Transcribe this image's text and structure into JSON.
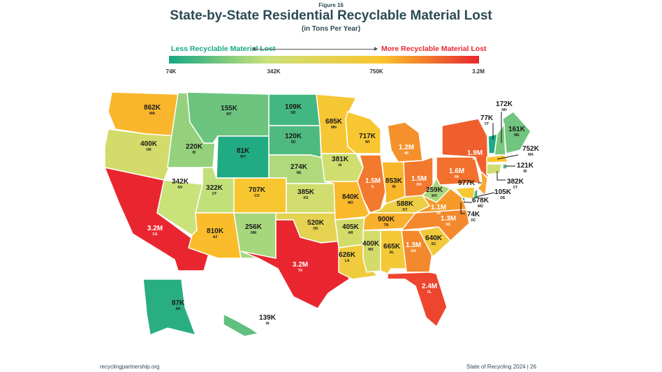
{
  "figure_label": "Figure 16",
  "title": "State-by-State Residential Recyclable Material Lost",
  "subtitle": "(in Tons Per Year)",
  "legend": {
    "less_label": "Less Recyclable Material Lost",
    "more_label": "More Recyclable Material Lost",
    "ticks": [
      "74K",
      "342K",
      "750K",
      "3.2M"
    ],
    "colors": {
      "low": "#16a883",
      "mid_low": "#c9e27a",
      "mid_high": "#fbc42b",
      "high": "#e9262f"
    }
  },
  "states": [
    {
      "abbr": "WA",
      "label": "862K",
      "value": 862000
    },
    {
      "abbr": "OR",
      "label": "400K",
      "value": 400000
    },
    {
      "abbr": "CA",
      "label": "3.2M",
      "value": 3200000
    },
    {
      "abbr": "ID",
      "label": "220K",
      "value": 220000
    },
    {
      "abbr": "NV",
      "label": "342K",
      "value": 342000
    },
    {
      "abbr": "MT",
      "label": "155K",
      "value": 155000
    },
    {
      "abbr": "WY",
      "label": "81K",
      "value": 81000
    },
    {
      "abbr": "UT",
      "label": "322K",
      "value": 322000
    },
    {
      "abbr": "AZ",
      "label": "810K",
      "value": 810000
    },
    {
      "abbr": "CO",
      "label": "707K",
      "value": 707000
    },
    {
      "abbr": "NM",
      "label": "256K",
      "value": 256000
    },
    {
      "abbr": "ND",
      "label": "109K",
      "value": 109000
    },
    {
      "abbr": "SD",
      "label": "120K",
      "value": 120000
    },
    {
      "abbr": "NE",
      "label": "274K",
      "value": 274000
    },
    {
      "abbr": "KS",
      "label": "385K",
      "value": 385000
    },
    {
      "abbr": "OK",
      "label": "520K",
      "value": 520000
    },
    {
      "abbr": "TX",
      "label": "3.2M",
      "value": 3200000
    },
    {
      "abbr": "MN",
      "label": "685K",
      "value": 685000
    },
    {
      "abbr": "IA",
      "label": "381K",
      "value": 381000
    },
    {
      "abbr": "MO",
      "label": "840K",
      "value": 840000
    },
    {
      "abbr": "AR",
      "label": "405K",
      "value": 405000
    },
    {
      "abbr": "LA",
      "label": "626K",
      "value": 626000
    },
    {
      "abbr": "WI",
      "label": "717K",
      "value": 717000
    },
    {
      "abbr": "IL",
      "label": "1.5M",
      "value": 1500000
    },
    {
      "abbr": "MI",
      "label": "1.2M",
      "value": 1200000
    },
    {
      "abbr": "IN",
      "label": "853K",
      "value": 853000
    },
    {
      "abbr": "OH",
      "label": "1.5M",
      "value": 1500000
    },
    {
      "abbr": "KY",
      "label": "588K",
      "value": 588000
    },
    {
      "abbr": "TN",
      "label": "900K",
      "value": 900000
    },
    {
      "abbr": "MS",
      "label": "400K",
      "value": 400000
    },
    {
      "abbr": "AL",
      "label": "665K",
      "value": 665000
    },
    {
      "abbr": "GA",
      "label": "1.3M",
      "value": 1300000
    },
    {
      "abbr": "FL",
      "label": "2.4M",
      "value": 2400000
    },
    {
      "abbr": "SC",
      "label": "640K",
      "value": 640000
    },
    {
      "abbr": "NC",
      "label": "1.3M",
      "value": 1300000
    },
    {
      "abbr": "VA",
      "label": "1.1M",
      "value": 1100000
    },
    {
      "abbr": "WV",
      "label": "259K",
      "value": 259000
    },
    {
      "abbr": "PA",
      "label": "1.6M",
      "value": 1600000
    },
    {
      "abbr": "NY",
      "label": "1.9M",
      "value": 1900000
    },
    {
      "abbr": "ME",
      "label": "161K",
      "value": 161000
    },
    {
      "abbr": "VT",
      "label": "77K",
      "value": 77000
    },
    {
      "abbr": "NH",
      "label": "172K",
      "value": 172000
    },
    {
      "abbr": "MA",
      "label": "752K",
      "value": 752000
    },
    {
      "abbr": "RI",
      "label": "121K",
      "value": 121000
    },
    {
      "abbr": "CT",
      "label": "382K",
      "value": 382000
    },
    {
      "abbr": "NJ",
      "label": "977K",
      "value": 977000
    },
    {
      "abbr": "DE",
      "label": "105K",
      "value": 105000
    },
    {
      "abbr": "MD",
      "label": "678K",
      "value": 678000
    },
    {
      "abbr": "DC",
      "label": "74K",
      "value": 74000
    },
    {
      "abbr": "AK",
      "label": "87K",
      "value": 87000
    },
    {
      "abbr": "HI",
      "label": "139K",
      "value": 139000
    }
  ],
  "footer": {
    "left": "recyclingpartnership.org",
    "right": "State of Recycling 2024",
    "page": "26"
  }
}
